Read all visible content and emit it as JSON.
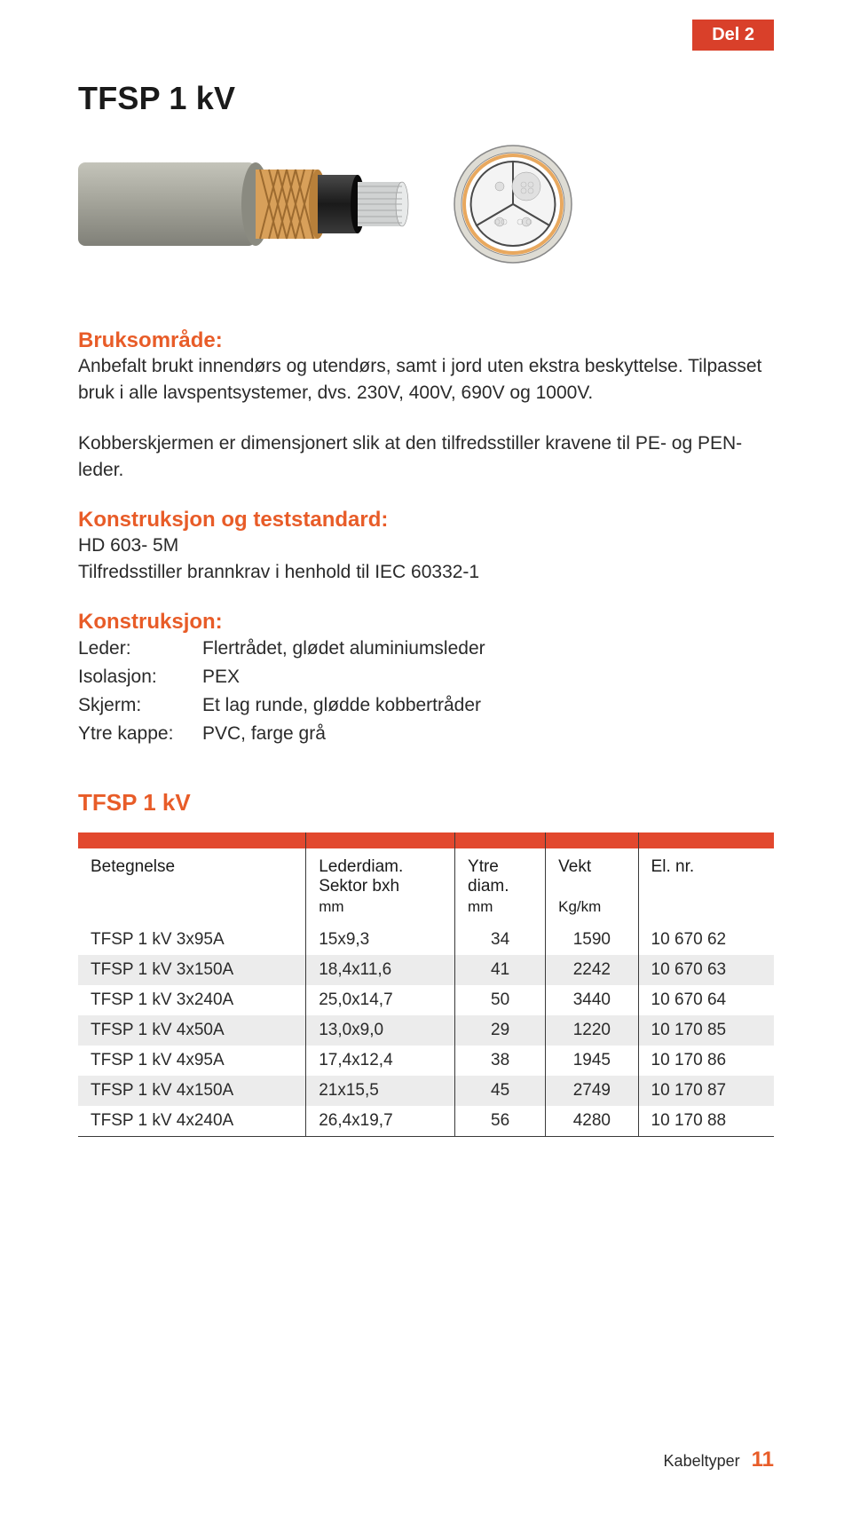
{
  "badge": "Del 2",
  "title": "TFSP 1 kV",
  "illustration": {
    "jacket_color": "#a2a298",
    "screen_color": "#d8a05a",
    "inner_color": "#2b2b2b",
    "conductor_color": "#e3e4e4",
    "cross_bg": "#ffffff",
    "cross_outer": "#dedcd4",
    "cross_screen": "#e8a85e",
    "cross_divider": "#4a4a4a"
  },
  "sections": {
    "usage_heading": "Bruksområde:",
    "usage_body1": "Anbefalt brukt innendørs og utendørs, samt i jord uten ekstra beskyttelse. Tilpasset bruk i alle lavspentsystemer, dvs. 230V, 400V, 690V og 1000V.",
    "usage_body2": "Kobberskjermen er dimensjonert slik at den tilfredsstiller kravene til PE- og PEN-leder.",
    "construction_heading": "Konstruksjon og teststandard:",
    "construction_body1": "HD 603- 5M",
    "construction_body2": "Tilfredsstiller brannkrav i henhold til IEC 60332-1",
    "details_heading": "Konstruksjon:",
    "details": {
      "leder_label": "Leder:",
      "leder_value": "Flertrådet, glødet aluminiumsleder",
      "isolasjon_label": "Isolasjon:",
      "isolasjon_value": "PEX",
      "skjerm_label": "Skjerm:",
      "skjerm_value": "Et lag runde, glødde kobbertråder",
      "ytrekappe_label": "Ytre kappe:",
      "ytrekappe_value": "PVC, farge grå"
    }
  },
  "table": {
    "title": "TFSP 1 kV",
    "header_color": "#e2482e",
    "alt_row_color": "#ececec",
    "border_color": "#3a3a3a",
    "columns": [
      {
        "label": "Betegnelse",
        "unit": ""
      },
      {
        "label": "Lederdiam.\nSektor bxh",
        "unit": "mm"
      },
      {
        "label": "Ytre\ndiam.",
        "unit": "mm"
      },
      {
        "label": "Vekt",
        "unit": "Kg/km"
      },
      {
        "label": "El. nr.",
        "unit": ""
      }
    ],
    "rows": [
      {
        "cells": [
          "TFSP 1 kV 3x95A",
          "15x9,3",
          "34",
          "1590",
          "10 670 62"
        ]
      },
      {
        "cells": [
          "TFSP 1 kV 3x150A",
          "18,4x11,6",
          "41",
          "2242",
          "10 670 63"
        ]
      },
      {
        "cells": [
          "TFSP 1 kV 3x240A",
          "25,0x14,7",
          "50",
          "3440",
          "10 670 64"
        ]
      },
      {
        "cells": [
          "TFSP 1 kV 4x50A",
          "13,0x9,0",
          "29",
          "1220",
          "10 170 85"
        ]
      },
      {
        "cells": [
          "TFSP 1 kV 4x95A",
          "17,4x12,4",
          "38",
          "1945",
          "10 170 86"
        ]
      },
      {
        "cells": [
          "TFSP 1 kV 4x150A",
          "21x15,5",
          "45",
          "2749",
          "10 170 87"
        ]
      },
      {
        "cells": [
          "TFSP 1 kV 4x240A",
          "26,4x19,7",
          "56",
          "4280",
          "10 170 88"
        ]
      }
    ]
  },
  "footer": {
    "label": "Kabeltyper",
    "page_num": "11"
  }
}
